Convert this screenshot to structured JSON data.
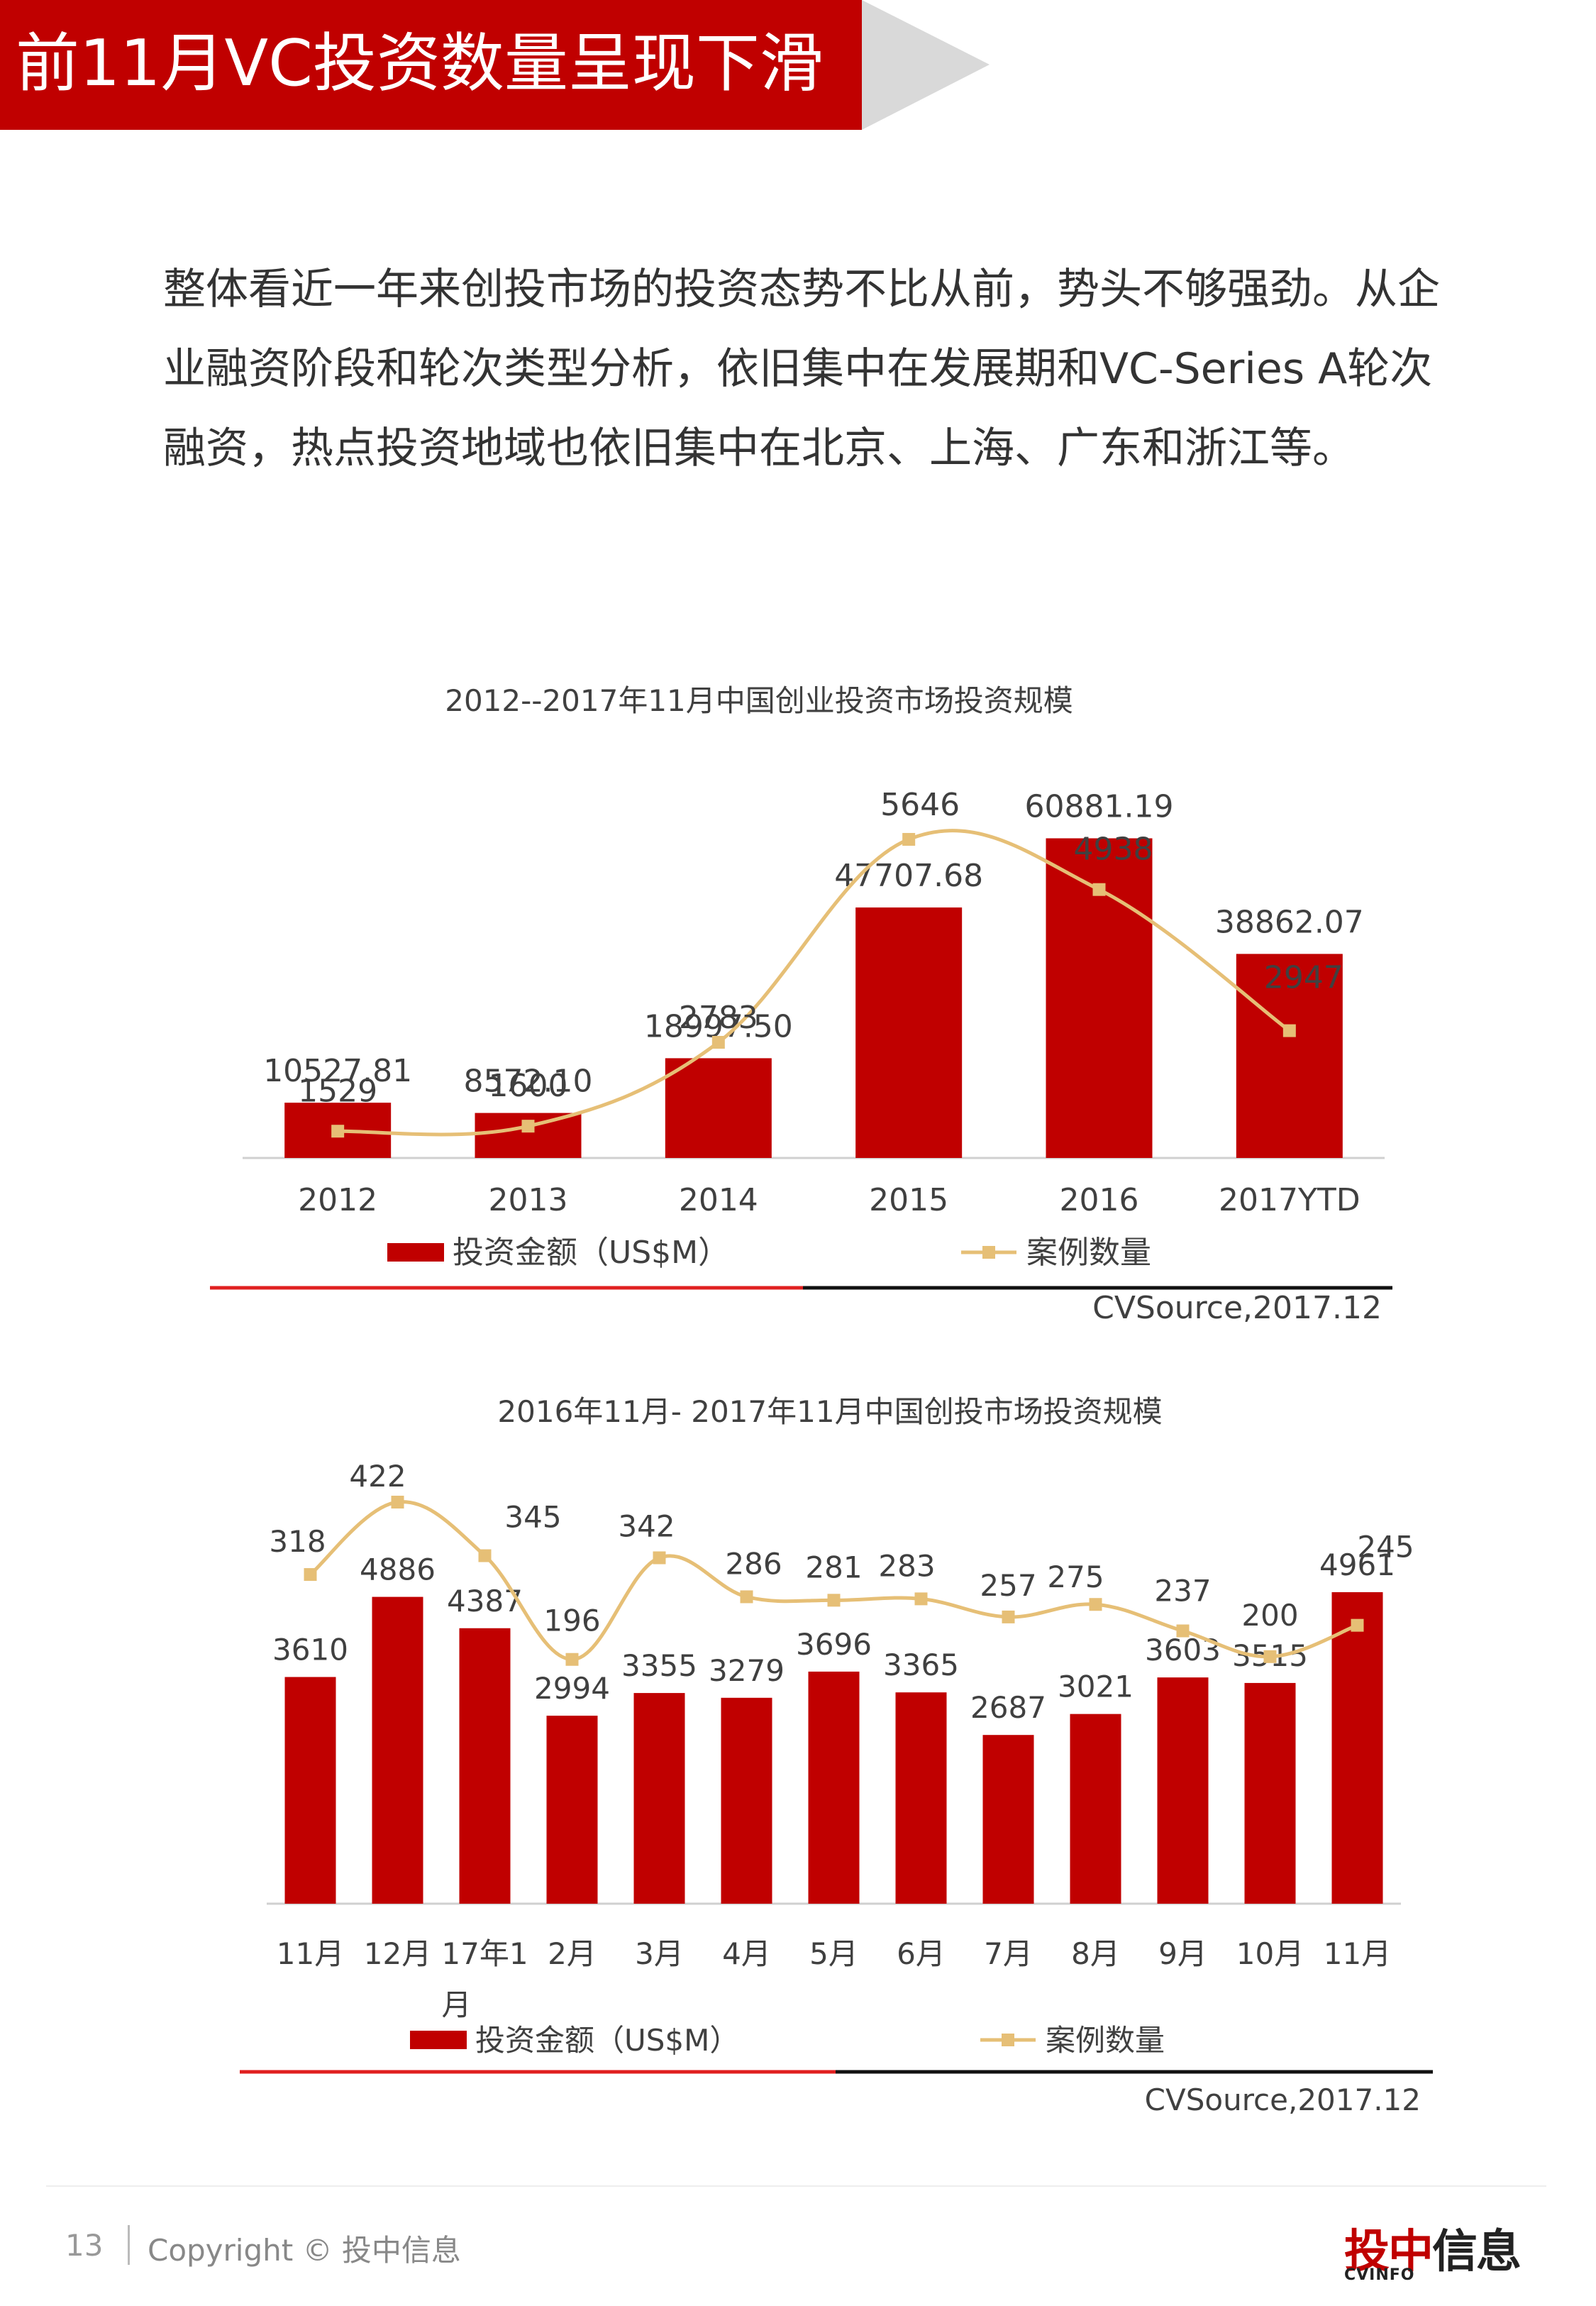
{
  "header": {
    "title": "前11月VC投资数量呈现下滑"
  },
  "intro": {
    "lines": [
      "整体看近一年来创投市场的投资态势不比从前，势头不够强劲。从企",
      "业融资阶段和轮次类型分析，依旧集中在发展期和VC-Series A轮次",
      "融资，热点投资地域也依旧集中在北京、上海、广东和浙江等。"
    ]
  },
  "chart_data": [
    {
      "type": "bar",
      "title": "2012--2017年11月中国创业投资市场投资规模",
      "categories": [
        "2012",
        "2013",
        "2014",
        "2015",
        "2016",
        "2017YTD"
      ],
      "series": [
        {
          "name": "投资金额（US$M）",
          "kind": "bar",
          "color": "#c00000",
          "values": [
            10527.81,
            8572.1,
            18997.5,
            47707.68,
            60881.19,
            38862.07
          ],
          "labels": [
            "10527.81",
            "8572.10",
            "18997.50",
            "47707.68",
            "60881.19",
            "38862.07"
          ]
        },
        {
          "name": "案例数量",
          "kind": "line",
          "color": "#e6bf76",
          "values": [
            1529,
            1600,
            2783,
            5646,
            4938,
            2947
          ],
          "labels": [
            "1529",
            "1600",
            "2783",
            "5646",
            "4938",
            "2947"
          ]
        }
      ],
      "source": "CVSource,2017.12"
    },
    {
      "type": "bar",
      "title": "2016年11月- 2017年11月中国创投市场投资规模",
      "categories": [
        "11月",
        "12月",
        "17年1\n月",
        "2月",
        "3月",
        "4月",
        "5月",
        "6月",
        "7月",
        "8月",
        "9月",
        "10月",
        "11月"
      ],
      "series": [
        {
          "name": "投资金额（US$M）",
          "kind": "bar",
          "color": "#c00000",
          "values": [
            3610,
            4886,
            4387,
            2994,
            3355,
            3279,
            3696,
            3365,
            2687,
            3021,
            3603,
            3515,
            4961
          ],
          "labels": [
            "3610",
            "4886",
            "4387",
            "2994",
            "3355",
            "3279",
            "3696",
            "3365",
            "2687",
            "3021",
            "3603",
            "3515",
            "4961"
          ]
        },
        {
          "name": "案例数量",
          "kind": "line",
          "color": "#e6bf76",
          "values": [
            318,
            422,
            345,
            196,
            342,
            286,
            281,
            283,
            257,
            275,
            237,
            200,
            245
          ],
          "labels": [
            "318",
            "422",
            "345",
            "196",
            "342",
            "286",
            "281",
            "283",
            "257",
            "275",
            "237",
            "200",
            "245"
          ]
        }
      ],
      "source": "CVSource,2017.12"
    }
  ],
  "footer": {
    "page_number": "13",
    "copyright": "Copyright © 投中信息",
    "brand_cn_red": "投中",
    "brand_cn_black": "信息",
    "brand_en": "CVINFO"
  },
  "colors": {
    "accent": "#c00000",
    "line": "#e6bf76"
  }
}
